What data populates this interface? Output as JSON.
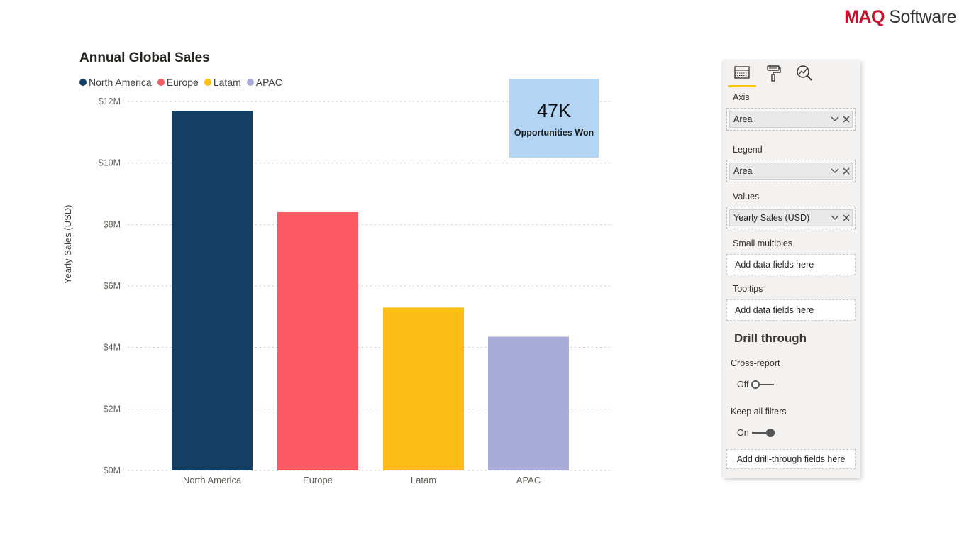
{
  "brand": {
    "part1": "MAQ",
    "part2": " Software",
    "accent": "#c8102e"
  },
  "chart": {
    "title": "Annual Global Sales",
    "ylabel": "Yearly Sales (USD)",
    "legend": [
      {
        "label": "North America",
        "color": "#123f63"
      },
      {
        "label": "Europe",
        "color": "#fd5962"
      },
      {
        "label": "Latam",
        "color": "#fdbe19"
      },
      {
        "label": "APAC",
        "color": "#a9acd8"
      }
    ]
  },
  "kpi": {
    "value": "47K",
    "label": "Opportunities Won",
    "color": "#b3d4f2"
  },
  "pane": {
    "tabs": [
      {
        "name": "fields-icon",
        "active": true
      },
      {
        "name": "format-paint-icon",
        "active": false
      },
      {
        "name": "analytics-icon",
        "active": false
      }
    ],
    "axis_label": "Axis",
    "axis_field": "Area",
    "legend_label": "Legend",
    "legend_field": "Area",
    "values_label": "Values",
    "values_field": "Yearly Sales (USD)",
    "small_multiples_label": "Small multiples",
    "small_multiples_placeholder": "Add data fields here",
    "tooltips_label": "Tooltips",
    "tooltips_placeholder": "Add data fields here",
    "drill_title": "Drill through",
    "cross_report_label": "Cross-report",
    "cross_report_state": "Off",
    "keep_filters_label": "Keep all filters",
    "keep_filters_state": "On",
    "drill_placeholder": "Add drill-through fields here"
  },
  "chart_data": {
    "type": "bar",
    "title": "Annual Global Sales",
    "xlabel": "",
    "ylabel": "Yearly Sales (USD)",
    "categories": [
      "North America",
      "Europe",
      "Latam",
      "APAC"
    ],
    "values": [
      11700000,
      8400000,
      5300000,
      4350000
    ],
    "colors": [
      "#123f63",
      "#fd5962",
      "#fdbe19",
      "#a9acd8"
    ],
    "ylim": [
      0,
      12000000
    ],
    "yticks": [
      0,
      2000000,
      4000000,
      6000000,
      8000000,
      10000000,
      12000000
    ],
    "ytick_labels": [
      "$0M",
      "$2M",
      "$4M",
      "$6M",
      "$8M",
      "$10M",
      "$12M"
    ],
    "grid": true,
    "legend_position": "top-left"
  }
}
